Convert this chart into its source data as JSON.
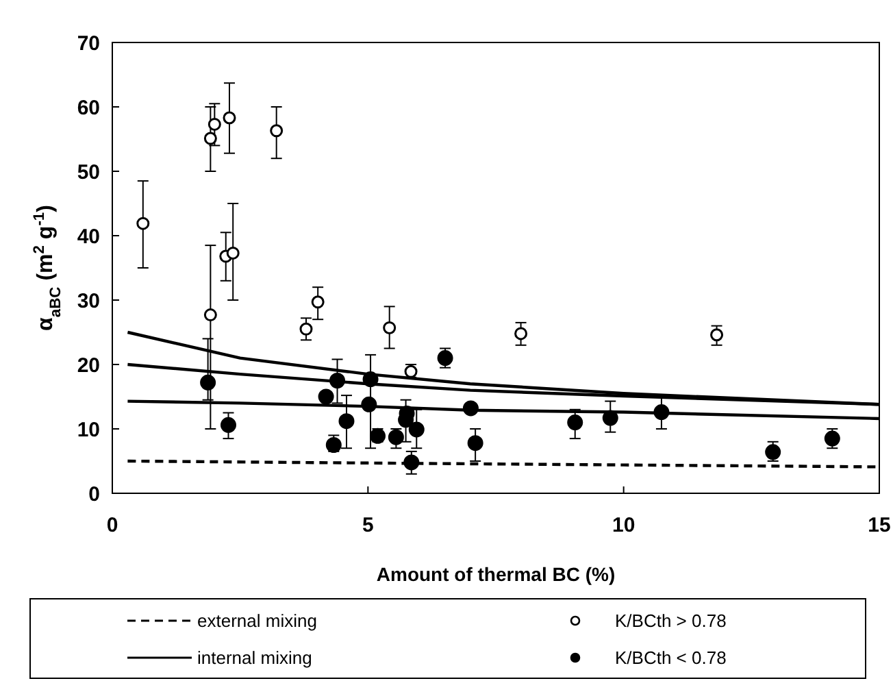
{
  "chart_data": {
    "type": "scatter",
    "xlabel": "Amount of thermal BC (%)",
    "ylabel": "α$_{aBC}$ (m$^{2}$ g$^{-1}$)",
    "xlim": [
      0,
      15
    ],
    "ylim": [
      0,
      70
    ],
    "xticks": [
      0,
      5,
      10,
      15
    ],
    "yticks": [
      0,
      10,
      20,
      30,
      40,
      50,
      60,
      70
    ],
    "grid": false,
    "legend": "bottom",
    "series": [
      {
        "type": "line",
        "name": "external mixing",
        "color": "#000000",
        "line_style": "dashed",
        "marker": "none",
        "x": [
          0.3,
          5,
          10,
          15
        ],
        "values": [
          5,
          4.7,
          4.4,
          4.1
        ]
      },
      {
        "type": "line",
        "name": "internal mixing",
        "color": "#000000",
        "line_style": "solid",
        "marker": "none",
        "x": [
          0.3,
          2.5,
          5,
          7,
          10,
          15
        ],
        "values": [
          25,
          21,
          18.5,
          17,
          15.5,
          13.8
        ]
      },
      {
        "type": "line",
        "color": "#000000",
        "line_style": "solid",
        "marker": "none",
        "x": [
          0.3,
          2.5,
          5,
          7,
          10,
          15
        ],
        "values": [
          20,
          18.5,
          17,
          16,
          15.1,
          13.8
        ]
      },
      {
        "type": "line",
        "color": "#000000",
        "line_style": "solid",
        "marker": "none",
        "x": [
          0.3,
          2.5,
          5,
          7,
          10,
          15
        ],
        "values": [
          14.3,
          14,
          13.5,
          12.9,
          12.6,
          11.6
        ]
      },
      {
        "type": "scatter",
        "name": "K/BCth > 0.78",
        "color": "#ffffff",
        "marker": "circle",
        "x": [
          0.6,
          1.92,
          1.92,
          2.0,
          2.29,
          2.22,
          2.36,
          3.21,
          3.79,
          4.02,
          5.42,
          5.84,
          7.99,
          11.82
        ],
        "values": [
          41.9,
          27.7,
          55.1,
          57.3,
          58.3,
          36.8,
          37.3,
          56.3,
          25.5,
          29.7,
          25.7,
          18.9,
          24.8,
          24.6
        ],
        "errors": [
          [
            35,
            48.5
          ],
          [
            10,
            38.5
          ],
          [
            50,
            60
          ],
          [
            54,
            60.5
          ],
          [
            52.8,
            63.7
          ],
          [
            33,
            40.5
          ],
          [
            30,
            45
          ],
          [
            52,
            60
          ],
          [
            23.8,
            27.2
          ],
          [
            27,
            32
          ],
          [
            22.5,
            29
          ],
          [
            18,
            20
          ],
          [
            23,
            26.5
          ],
          [
            23,
            26
          ]
        ]
      },
      {
        "type": "scatter",
        "name": "K/BCth < 0.78",
        "color": "#000000",
        "marker": "circle",
        "x": [
          1.87,
          2.27,
          4.18,
          4.33,
          4.4,
          4.58,
          5.05,
          5.02,
          5.19,
          5.55,
          5.76,
          5.74,
          5.85,
          5.95,
          6.51,
          7.01,
          7.1,
          9.05,
          9.74,
          10.74,
          12.92,
          14.08
        ],
        "values": [
          17.2,
          10.6,
          15.0,
          7.5,
          17.5,
          11.2,
          17.7,
          13.8,
          8.9,
          8.7,
          12.4,
          11.4,
          4.8,
          9.9,
          21.0,
          13.2,
          7.8,
          11.0,
          11.7,
          12.6,
          6.4,
          8.5
        ],
        "errors": [
          [
            14.5,
            24
          ],
          [
            8.5,
            12.5
          ],
          null,
          [
            6.5,
            9
          ],
          [
            14,
            20.8
          ],
          [
            7,
            15.2
          ],
          [
            7,
            21.5
          ],
          null,
          [
            8,
            10
          ],
          [
            7,
            10
          ],
          null,
          [
            8,
            14.5
          ],
          [
            3,
            6.5
          ],
          [
            7,
            13
          ],
          [
            19.5,
            22.5
          ],
          null,
          [
            5,
            10
          ],
          [
            8.5,
            13
          ],
          [
            9.5,
            14.3
          ],
          [
            10,
            15
          ],
          [
            5,
            8
          ],
          [
            7,
            10
          ]
        ]
      }
    ]
  }
}
